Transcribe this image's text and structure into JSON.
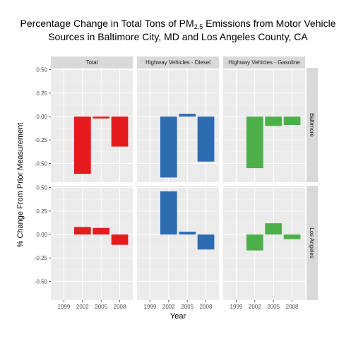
{
  "chart_data": {
    "type": "bar",
    "title_main": "Percentage Change in Total Tons of PM",
    "title_sub": "2.5",
    "title_rest": " Emissions from Motor Vehicle",
    "title_line2": "Sources in Baltimore City, MD and Los Angeles County, CA",
    "xlabel": "Year",
    "ylabel": "% Change From Prior Measurement",
    "categories": [
      "1999",
      "2002",
      "2005",
      "2008"
    ],
    "ylim": [
      -0.7,
      0.52
    ],
    "yticks": [
      0.5,
      0.25,
      0.0,
      -0.25,
      -0.5
    ],
    "ytick_labels": [
      "0.50",
      "0.25",
      "0.00",
      "-0.25",
      "-0.50"
    ],
    "columns": [
      "Total",
      "Highway Vehicles - Diesel",
      "Highway Vehicles - Gasoline"
    ],
    "rows": [
      "Baltimore",
      "Los Angeles"
    ],
    "colors": [
      "#e41a1c",
      "#2e6cb2",
      "#4daf4a"
    ],
    "panels": [
      {
        "row": 0,
        "col": 0,
        "values": [
          null,
          -0.61,
          -0.02,
          -0.32
        ]
      },
      {
        "row": 0,
        "col": 1,
        "values": [
          null,
          -0.65,
          0.03,
          -0.48
        ]
      },
      {
        "row": 0,
        "col": 2,
        "values": [
          null,
          -0.55,
          -0.1,
          -0.09
        ]
      },
      {
        "row": 1,
        "col": 0,
        "values": [
          null,
          0.08,
          0.07,
          -0.11
        ]
      },
      {
        "row": 1,
        "col": 1,
        "values": [
          null,
          0.46,
          0.03,
          -0.16
        ]
      },
      {
        "row": 1,
        "col": 2,
        "values": [
          null,
          -0.17,
          0.12,
          -0.05
        ]
      }
    ]
  }
}
